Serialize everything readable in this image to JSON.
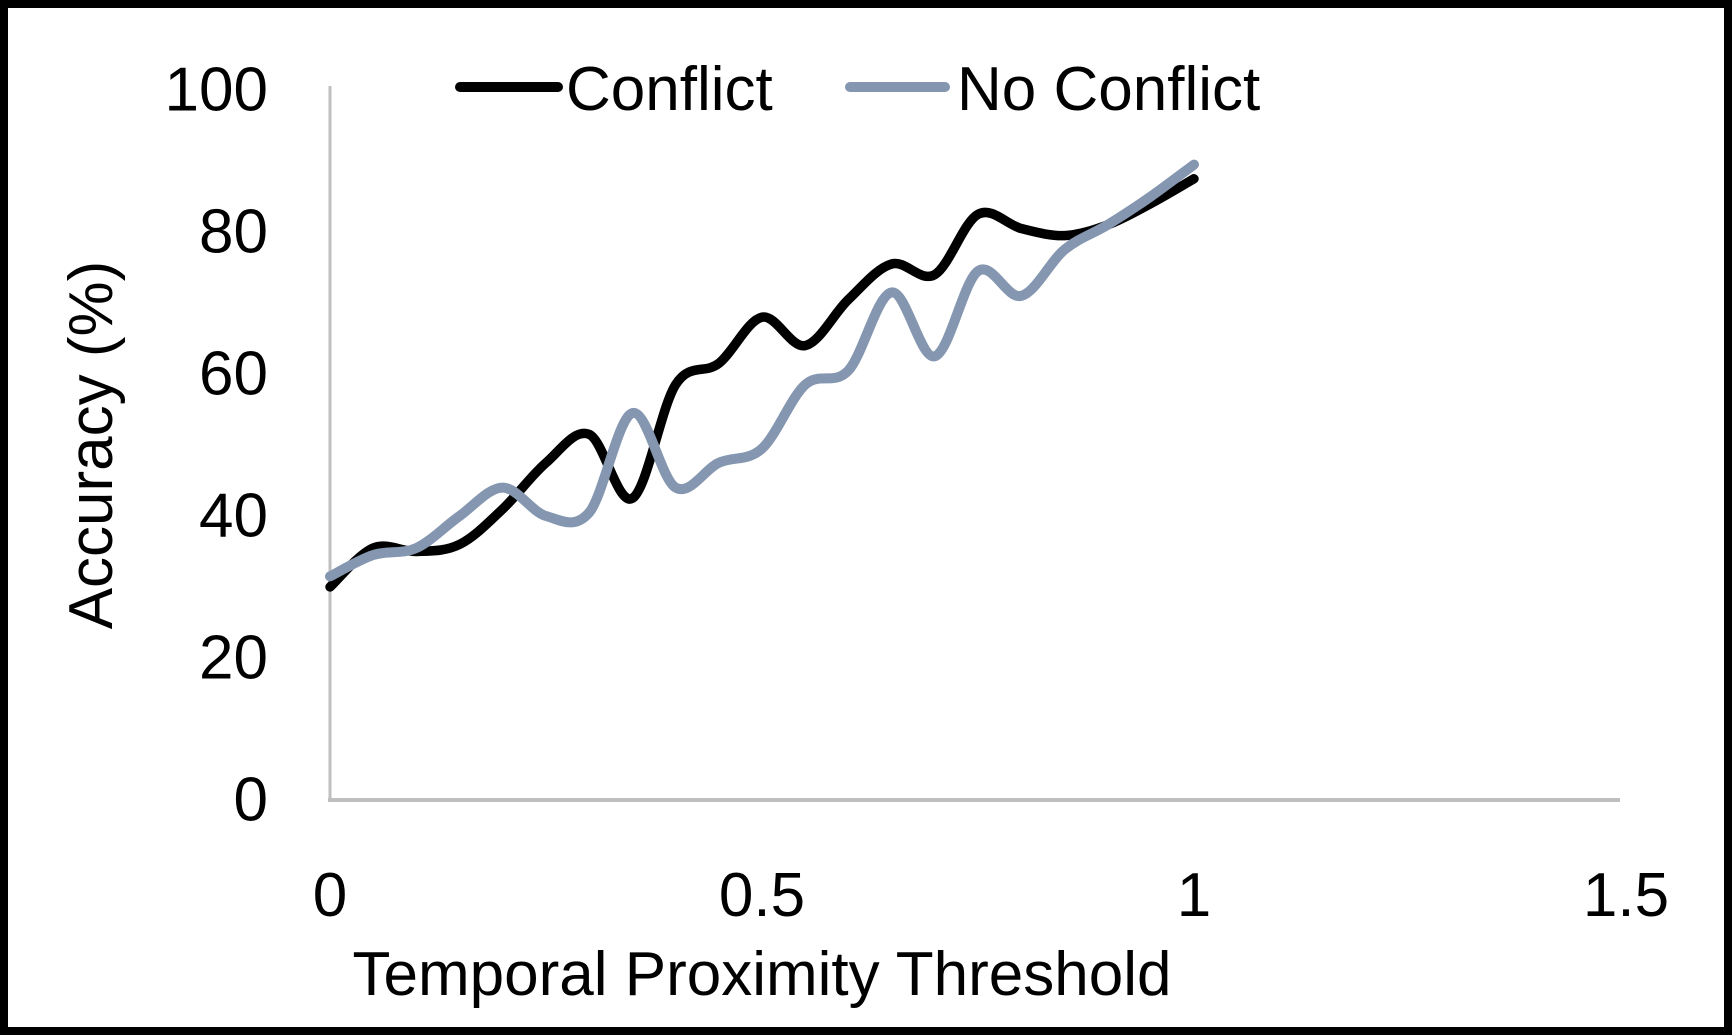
{
  "chart_data": {
    "type": "line",
    "title": "",
    "xlabel": "Temporal Proximity Threshold",
    "ylabel": "Accuracy (%)",
    "xlim": [
      0,
      1.5
    ],
    "ylim": [
      0,
      100
    ],
    "grid": false,
    "legend_position": "top-center",
    "x_ticks": [
      {
        "label": "0",
        "value": 0
      },
      {
        "label": "0.5",
        "value": 0.5
      },
      {
        "label": "1",
        "value": 1
      },
      {
        "label": "1.5",
        "value": 1.5
      }
    ],
    "y_ticks": [
      {
        "label": "100",
        "value": 100
      },
      {
        "label": "80",
        "value": 80
      },
      {
        "label": "60",
        "value": 60
      },
      {
        "label": "40",
        "value": 40
      },
      {
        "label": "20",
        "value": 20
      },
      {
        "label": "0",
        "value": 0
      }
    ],
    "x": [
      0,
      0.05,
      0.1,
      0.15,
      0.2,
      0.25,
      0.3,
      0.35,
      0.4,
      0.45,
      0.5,
      0.55,
      0.6,
      0.65,
      0.7,
      0.75,
      0.8,
      0.85,
      0.9,
      0.95,
      1.0
    ],
    "series": [
      {
        "name": "Conflict",
        "color": "#000000",
        "values": [
          30,
          35.5,
          35,
          36,
          41,
          47.5,
          51.5,
          42.5,
          58.5,
          61.5,
          68,
          64,
          70.5,
          75.5,
          74,
          82.5,
          80.5,
          79.5,
          81,
          84,
          87.5
        ]
      },
      {
        "name": "No Conflict",
        "color": "#8496B0",
        "values": [
          31.5,
          34.5,
          35.5,
          40,
          44,
          40,
          40.5,
          54.5,
          44,
          47.5,
          49.5,
          58.5,
          60.5,
          71.5,
          62.5,
          74.5,
          71,
          77.5,
          81,
          85,
          89.5
        ]
      }
    ]
  },
  "styles": {
    "axis_line_color": "#BFBFBF",
    "text_color": "#000000",
    "frame_border_color": "#000000",
    "background": "#FFFFFF"
  }
}
